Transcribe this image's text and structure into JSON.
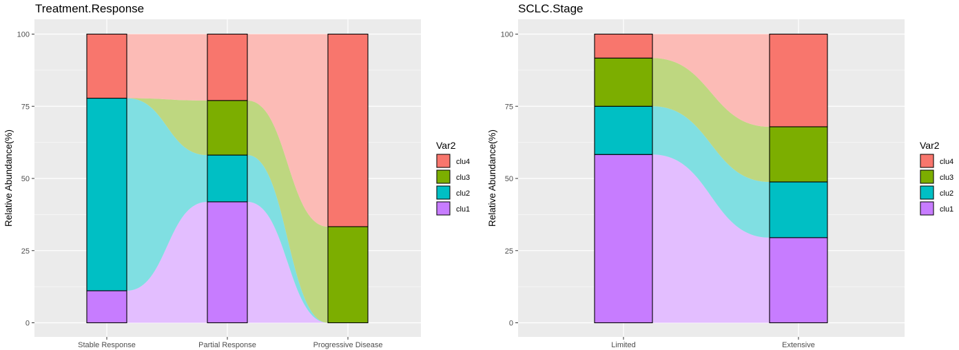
{
  "chart_data": [
    {
      "type": "bar",
      "subtype": "stacked-alluvial",
      "title": "Treatment.Response",
      "xlabel": "",
      "ylabel": "Relative Abundance(%)",
      "ylim": [
        0,
        100
      ],
      "yticks": [
        0,
        25,
        50,
        75,
        100
      ],
      "categories": [
        "Stable Response",
        "Partial Response",
        "Progressive Disease"
      ],
      "series": [
        {
          "name": "clu1",
          "color": "#C77CFF",
          "values": [
            11.1,
            41.9,
            0
          ]
        },
        {
          "name": "clu2",
          "color": "#00BFC4",
          "values": [
            66.7,
            16.2,
            0
          ]
        },
        {
          "name": "clu3",
          "color": "#7CAE00",
          "values": [
            0,
            18.9,
            33.3
          ]
        },
        {
          "name": "clu4",
          "color": "#F8766D",
          "values": [
            22.2,
            23.0,
            66.7
          ]
        }
      ],
      "legend": {
        "title": "Var2",
        "position": "right",
        "items": [
          "clu4",
          "clu3",
          "clu2",
          "clu1"
        ]
      },
      "grid": true
    },
    {
      "type": "bar",
      "subtype": "stacked-alluvial",
      "title": "SCLC.Stage",
      "xlabel": "",
      "ylabel": "Relative Abundance(%)",
      "ylim": [
        0,
        100
      ],
      "yticks": [
        0,
        25,
        50,
        75,
        100
      ],
      "categories": [
        "Limited",
        "Extensive"
      ],
      "series": [
        {
          "name": "clu1",
          "color": "#C77CFF",
          "values": [
            58.3,
            29.5
          ]
        },
        {
          "name": "clu2",
          "color": "#00BFC4",
          "values": [
            16.7,
            19.3
          ]
        },
        {
          "name": "clu3",
          "color": "#7CAE00",
          "values": [
            16.7,
            19.1
          ]
        },
        {
          "name": "clu4",
          "color": "#F8766D",
          "values": [
            8.3,
            32.1
          ]
        }
      ],
      "legend": {
        "title": "Var2",
        "position": "right",
        "items": [
          "clu4",
          "clu3",
          "clu2",
          "clu1"
        ]
      },
      "grid": true
    }
  ]
}
